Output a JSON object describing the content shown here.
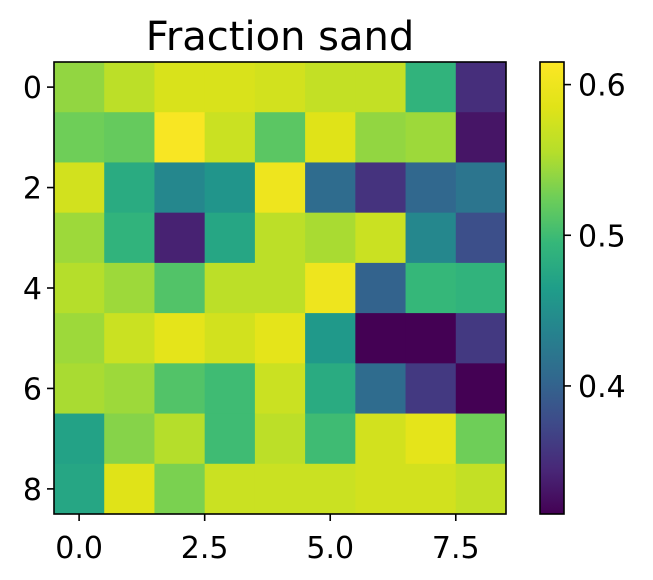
{
  "chart_data": {
    "type": "heatmap",
    "title": "Fraction sand",
    "colormap": "viridis",
    "color_range": [
      0.315,
      0.615
    ],
    "x_ticks": [
      0.0,
      2.5,
      5.0,
      7.5
    ],
    "x_tick_labels": [
      "0.0",
      "2.5",
      "5.0",
      "7.5"
    ],
    "y_ticks": [
      0,
      2,
      4,
      6,
      8
    ],
    "y_tick_labels": [
      "0",
      "2",
      "4",
      "6",
      "8"
    ],
    "xlim": [
      -0.5,
      8.5
    ],
    "ylim": [
      8.5,
      -0.5
    ],
    "colorbar_ticks": [
      0.4,
      0.5,
      0.6
    ],
    "colorbar_tick_labels": [
      "0.4",
      "0.5",
      "0.6"
    ],
    "values": [
      [
        0.54,
        0.56,
        0.58,
        0.58,
        0.575,
        0.565,
        0.565,
        0.49,
        0.35
      ],
      [
        0.525,
        0.52,
        0.61,
        0.57,
        0.515,
        0.585,
        0.54,
        0.545,
        0.33
      ],
      [
        0.575,
        0.48,
        0.44,
        0.455,
        0.6,
        0.41,
        0.355,
        0.405,
        0.42
      ],
      [
        0.545,
        0.49,
        0.34,
        0.475,
        0.56,
        0.55,
        0.57,
        0.44,
        0.38
      ],
      [
        0.555,
        0.545,
        0.51,
        0.56,
        0.56,
        0.6,
        0.4,
        0.495,
        0.49
      ],
      [
        0.545,
        0.57,
        0.59,
        0.575,
        0.59,
        0.46,
        0.315,
        0.315,
        0.36
      ],
      [
        0.55,
        0.545,
        0.51,
        0.5,
        0.57,
        0.48,
        0.41,
        0.36,
        0.315
      ],
      [
        0.47,
        0.535,
        0.555,
        0.5,
        0.56,
        0.5,
        0.575,
        0.59,
        0.525
      ],
      [
        0.475,
        0.585,
        0.53,
        0.57,
        0.57,
        0.57,
        0.575,
        0.575,
        0.565
      ]
    ]
  }
}
